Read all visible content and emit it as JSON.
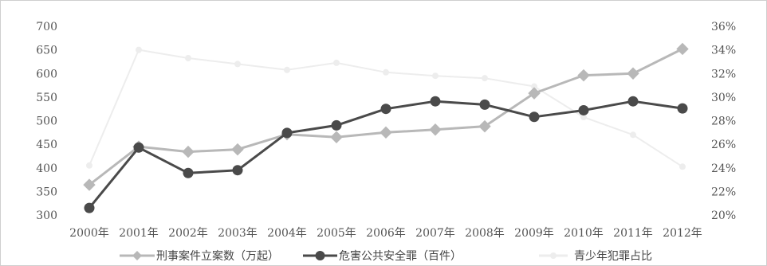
{
  "chart_data": {
    "type": "line",
    "categories": [
      "2000年",
      "2001年",
      "2002年",
      "2003年",
      "2004年",
      "2005年",
      "2006年",
      "2007年",
      "2008年",
      "2009年",
      "2010年",
      "2011年",
      "2012年"
    ],
    "left_axis": {
      "ylim": [
        300,
        700
      ],
      "ticks": [
        "300",
        "350",
        "400",
        "450",
        "500",
        "550",
        "600",
        "650",
        "700"
      ]
    },
    "right_axis": {
      "ylim": [
        20,
        36
      ],
      "ticks": [
        "20%",
        "22%",
        "24%",
        "26%",
        "28%",
        "30%",
        "32%",
        "34%",
        "36%"
      ]
    },
    "series": [
      {
        "name": "刑事案件立案数（万起）",
        "axis": "left",
        "color": "#b8b8b8",
        "marker": "diamond",
        "values": [
          364,
          445,
          434,
          439,
          471,
          465,
          475,
          481,
          488,
          558,
          596,
          600,
          652
        ]
      },
      {
        "name": "危害公共安全罪（百件）",
        "axis": "left",
        "color": "#4a4a4a",
        "marker": "circle",
        "values": [
          315,
          443,
          389,
          395,
          474,
          490,
          525,
          541,
          534,
          508,
          522,
          541,
          526
        ]
      },
      {
        "name": "青少年犯罪占比",
        "axis": "right",
        "color": "#ededed",
        "marker": "circle",
        "values": [
          24.2,
          34.0,
          33.3,
          32.8,
          32.3,
          32.9,
          32.1,
          31.8,
          31.6,
          30.9,
          28.3,
          26.8,
          24.1
        ]
      }
    ],
    "grid": false,
    "legend": "bottom"
  }
}
